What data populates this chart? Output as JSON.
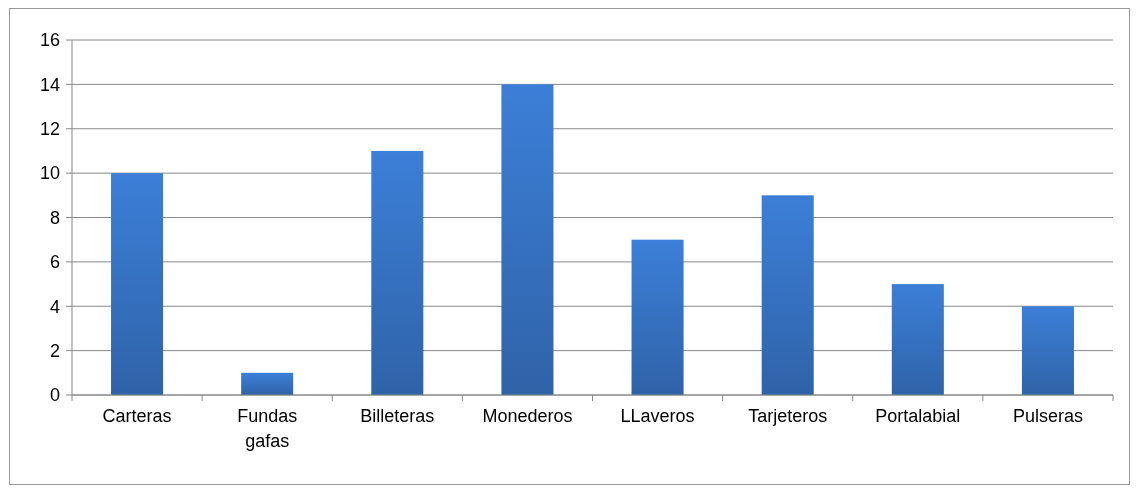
{
  "chart_data": {
    "type": "bar",
    "categories": [
      "Carteras",
      "Fundas gafas",
      "Billeteras",
      "Monederos",
      "LLaveros",
      "Tarjeteros",
      "Portalabial",
      "Pulseras"
    ],
    "values": [
      10,
      1,
      11,
      14,
      7,
      9,
      5,
      4
    ],
    "color": "#3a7bd0",
    "ylim": [
      0,
      16
    ],
    "yticks": [
      0,
      2,
      4,
      6,
      8,
      10,
      12,
      14,
      16
    ],
    "grid": "y"
  }
}
